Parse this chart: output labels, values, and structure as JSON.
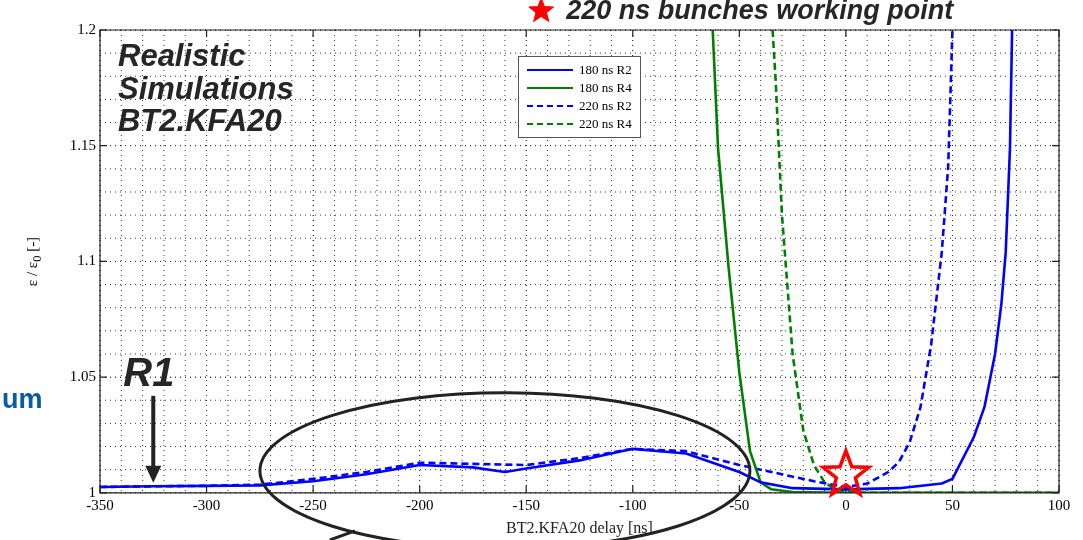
{
  "chart_data": {
    "type": "line",
    "xlabel": "BT2.KFA20 delay [ns]",
    "ylabel": "ε / ε$_{0}$ [-]",
    "xlim": [
      -350,
      100
    ],
    "xticks": [
      -350,
      -300,
      -250,
      -200,
      -150,
      -100,
      -50,
      0,
      50,
      100
    ],
    "ylim": [
      1,
      1.2
    ],
    "yticks": [
      1,
      1.05,
      1.1,
      1.15,
      1.2
    ],
    "grid": true,
    "legend": "top",
    "annotations": [
      "220 ns bunches working point",
      "Realistic\nSimulations\nBT2.KFA20",
      {
        "text": "R1",
        "x": -325,
        "y": 1.003
      },
      "um"
    ],
    "series": [
      {
        "name": "180 ns R2",
        "color": "#0000ff",
        "line_style": "solid",
        "x": [
          -350,
          -325,
          -300,
          -275,
          -250,
          -225,
          -200,
          -175,
          -160,
          -150,
          -125,
          -100,
          -75,
          -50,
          -40,
          -25,
          0,
          25,
          45,
          50,
          60,
          65,
          70,
          73,
          75,
          77,
          78
        ],
        "values": [
          1.0025,
          1.0028,
          1.003,
          1.0032,
          1.005,
          1.008,
          1.012,
          1.011,
          1.009,
          1.0105,
          1.014,
          1.019,
          1.017,
          1.009,
          1.0045,
          1.002,
          1.0015,
          1.002,
          1.004,
          1.006,
          1.024,
          1.037,
          1.06,
          1.082,
          1.104,
          1.149,
          1.2
        ]
      },
      {
        "name": "180 ns R4",
        "color": "#007f00",
        "line_style": "solid",
        "x": [
          -62.5,
          -60,
          -55,
          -50,
          -45,
          -40,
          -35,
          -25,
          0,
          50,
          100
        ],
        "values": [
          1.2,
          1.149,
          1.097,
          1.052,
          1.018,
          1.0045,
          1.0015,
          1.0003,
          1,
          1,
          1
        ]
      },
      {
        "name": "220 ns R2",
        "color": "#0000ff",
        "line_style": "dashed",
        "x": [
          -350,
          -325,
          -300,
          -275,
          -250,
          -225,
          -200,
          -175,
          -150,
          -125,
          -100,
          -75,
          -50,
          -30,
          -15,
          0,
          10,
          20,
          25,
          30,
          35,
          40,
          45,
          48,
          50
        ],
        "values": [
          1.0025,
          1.0028,
          1.003,
          1.0035,
          1.006,
          1.009,
          1.013,
          1.0125,
          1.012,
          1.015,
          1.019,
          1.018,
          1.012,
          1.008,
          1.005,
          1.0025,
          1.004,
          1.009,
          1.0135,
          1.022,
          1.037,
          1.064,
          1.104,
          1.141,
          1.2
        ]
      },
      {
        "name": "220 ns R4",
        "color": "#007f00",
        "line_style": "dashed",
        "x": [
          -34.4,
          -33,
          -30,
          -25,
          -20,
          -15,
          -10,
          -5,
          0,
          10,
          50,
          100
        ],
        "values": [
          1.2,
          1.179,
          1.12,
          1.06,
          1.027,
          1.012,
          1.0045,
          1.0015,
          1.0005,
          1,
          1,
          1
        ]
      }
    ]
  }
}
